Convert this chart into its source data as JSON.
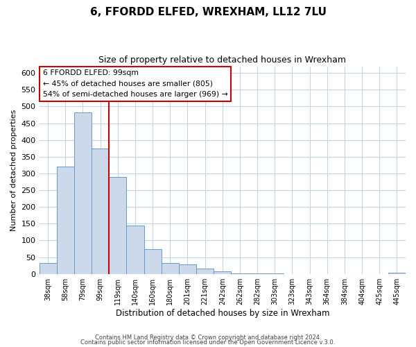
{
  "title": "6, FFORDD ELFED, WREXHAM, LL12 7LU",
  "subtitle": "Size of property relative to detached houses in Wrexham",
  "xlabel": "Distribution of detached houses by size in Wrexham",
  "ylabel": "Number of detached properties",
  "bar_labels": [
    "38sqm",
    "58sqm",
    "79sqm",
    "99sqm",
    "119sqm",
    "140sqm",
    "160sqm",
    "180sqm",
    "201sqm",
    "221sqm",
    "242sqm",
    "262sqm",
    "282sqm",
    "303sqm",
    "323sqm",
    "343sqm",
    "364sqm",
    "384sqm",
    "404sqm",
    "425sqm",
    "445sqm"
  ],
  "bar_values": [
    32,
    320,
    483,
    375,
    290,
    145,
    75,
    32,
    29,
    16,
    7,
    2,
    1,
    1,
    0,
    0,
    0,
    0,
    0,
    0,
    3
  ],
  "bar_color": "#ccd9ea",
  "bar_edge_color": "#6699cc",
  "vline_color": "#cc0000",
  "vline_x_idx": 3,
  "annotation_title": "6 FFORDD ELFED: 99sqm",
  "annotation_line1": "← 45% of detached houses are smaller (805)",
  "annotation_line2": "54% of semi-detached houses are larger (969) →",
  "annotation_box_edge": "#cc0000",
  "ylim": [
    0,
    620
  ],
  "yticks": [
    0,
    50,
    100,
    150,
    200,
    250,
    300,
    350,
    400,
    450,
    500,
    550,
    600
  ],
  "footer1": "Contains HM Land Registry data © Crown copyright and database right 2024.",
  "footer2": "Contains public sector information licensed under the Open Government Licence v.3.0.",
  "background_color": "#ffffff",
  "grid_color": "#c5d5e8"
}
